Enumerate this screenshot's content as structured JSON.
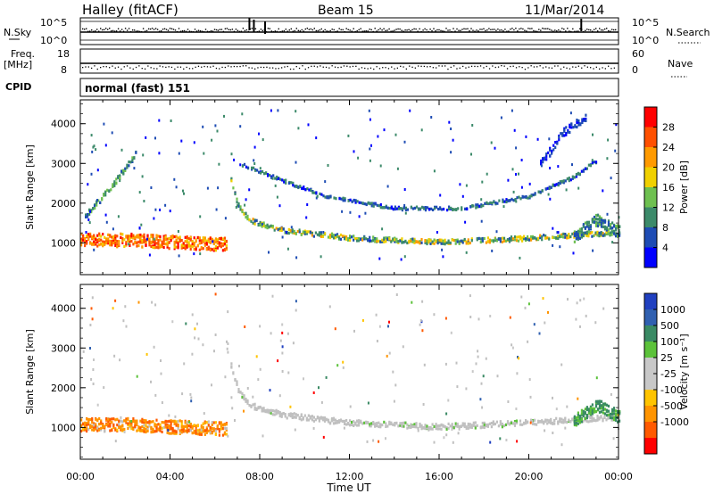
{
  "header": {
    "station": "Halley (fitACF)",
    "beam": "Beam 15",
    "date": "11/Mar/2014"
  },
  "status_panels": {
    "nsky_label": "N.Sky",
    "nsky_ticks": [
      "10^5",
      "10^0"
    ],
    "nsearch_label": "N.Search",
    "nsearch_ticks": [
      "10^5",
      "10^0"
    ],
    "freq_label": "Freq.",
    "freq_unit": "[MHz]",
    "freq_ticks": [
      "18",
      "8"
    ],
    "nave_label": "Nave",
    "nave_ticks": [
      "60",
      "0"
    ],
    "cpid_label": "CPID",
    "cpid_value": "normal (fast) 151"
  },
  "colors": {
    "power": [
      "#0000ff",
      "#1e4cb4",
      "#3c8a6a",
      "#6ec050",
      "#f0d000",
      "#ff9a00",
      "#ff5000",
      "#ff0000"
    ],
    "velocity": [
      "#ff0000",
      "#ff5a00",
      "#ff9400",
      "#ffc400",
      "#c8c8c8",
      "#c8c8c8",
      "#5cc23a",
      "#3a8a64",
      "#3060b0",
      "#2040c0"
    ],
    "ground_scatter": "#c0c0c0"
  },
  "chart_data": [
    {
      "type": "heatmap",
      "name": "power",
      "ylabel": "Slant Range [km]",
      "xlabel": "Time UT",
      "x_ticks": [
        "00:00",
        "04:00",
        "08:00",
        "12:00",
        "16:00",
        "20:00",
        "00:00"
      ],
      "x_range_hours": [
        0,
        24
      ],
      "y_ticks": [
        1000,
        2000,
        3000,
        4000
      ],
      "ylim": [
        200,
        4600
      ],
      "colorbar_label": "Power [dB]",
      "colorbar_ticks": [
        4,
        8,
        12,
        16,
        20,
        24,
        28
      ],
      "colorbar_range": [
        0,
        32
      ],
      "echo_bands": [
        {
          "from_h": 0.0,
          "to_h": 6.5,
          "points": [
            [
              0,
              1100
            ],
            [
              2,
              1100
            ],
            [
              4,
              1050
            ],
            [
              6.3,
              1000
            ]
          ],
          "width_km": 330,
          "value_range": [
            18,
            30
          ]
        },
        {
          "from_h": 6.7,
          "to_h": 24,
          "points": [
            [
              6.7,
              2600
            ],
            [
              7.0,
              2000
            ],
            [
              7.5,
              1600
            ],
            [
              9,
              1350
            ],
            [
              12,
              1150
            ],
            [
              16,
              1050
            ],
            [
              20,
              1150
            ],
            [
              24,
              1300
            ]
          ],
          "width_km": 120,
          "value_range": [
            6,
            22
          ]
        },
        {
          "from_h": 7.2,
          "to_h": 23,
          "points": [
            [
              7.2,
              3000
            ],
            [
              9,
              2600
            ],
            [
              11,
              2200
            ],
            [
              14,
              1900
            ],
            [
              17,
              1900
            ],
            [
              20,
              2200
            ],
            [
              22,
              2700
            ],
            [
              23,
              3100
            ]
          ],
          "width_km": 80,
          "value_range": [
            2,
            12
          ]
        },
        {
          "from_h": 0.2,
          "to_h": 2.5,
          "points": [
            [
              0.2,
              1700
            ],
            [
              1.3,
              2400
            ],
            [
              2.5,
              3300
            ]
          ],
          "width_km": 140,
          "value_range": [
            6,
            14
          ]
        },
        {
          "from_h": 22,
          "to_h": 24,
          "points": [
            [
              22,
              1200
            ],
            [
              23,
              1600
            ],
            [
              24,
              1300
            ]
          ],
          "width_km": 300,
          "value_range": [
            4,
            14
          ]
        },
        {
          "from_h": 20.5,
          "to_h": 22.5,
          "points": [
            [
              20.5,
              3000
            ],
            [
              21.5,
              3800
            ],
            [
              22.5,
              4200
            ]
          ],
          "width_km": 200,
          "value_range": [
            2,
            8
          ]
        }
      ]
    },
    {
      "type": "heatmap",
      "name": "velocity",
      "ylabel": "Slant Range [km]",
      "xlabel": "Time UT",
      "x_ticks": [
        "00:00",
        "04:00",
        "08:00",
        "12:00",
        "16:00",
        "20:00",
        "00:00"
      ],
      "x_range_hours": [
        0,
        24
      ],
      "y_ticks": [
        1000,
        2000,
        3000,
        4000
      ],
      "ylim": [
        200,
        4600
      ],
      "colorbar_label": "Velocity [m s⁻¹]",
      "colorbar_ticks": [
        "1000",
        "500",
        "100",
        "25",
        "-25",
        "-100",
        "-500",
        "-1000"
      ],
      "echo_bands": [
        {
          "from_h": 0.0,
          "to_h": 6.5,
          "points": [
            [
              0,
              1100
            ],
            [
              2,
              1100
            ],
            [
              4,
              1050
            ],
            [
              6.3,
              1000
            ]
          ],
          "width_km": 330,
          "dominant": "-100 to -500 m/s (orange)"
        },
        {
          "from_h": 6.7,
          "to_h": 24,
          "points": [
            [
              6.7,
              2600
            ],
            [
              7.0,
              2000
            ],
            [
              7.5,
              1600
            ],
            [
              9,
              1350
            ],
            [
              12,
              1150
            ],
            [
              16,
              1050
            ],
            [
              20,
              1150
            ],
            [
              24,
              1300
            ]
          ],
          "width_km": 140,
          "dominant": "ground scatter (grey)"
        },
        {
          "from_h": 22,
          "to_h": 24,
          "points": [
            [
              22,
              1200
            ],
            [
              23,
              1600
            ],
            [
              24,
              1300
            ]
          ],
          "width_km": 300,
          "dominant": "100 to 500 m/s (green)"
        }
      ]
    }
  ]
}
